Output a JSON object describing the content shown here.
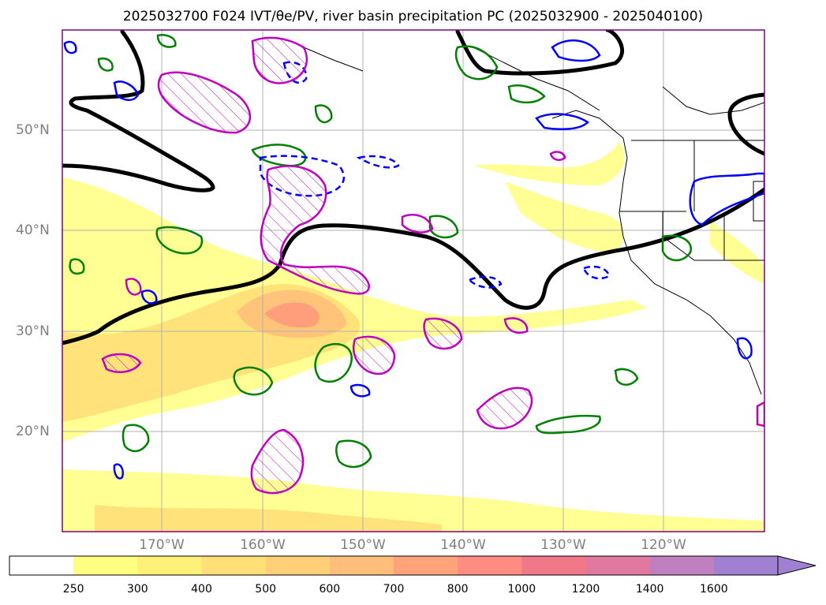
{
  "title": "2025032700 F024 IVT/θe/PV, river basin precipitation PC (2025032900 - 2025040100)",
  "map": {
    "projection": "PlateCarree",
    "lon_range": [
      -180,
      -110
    ],
    "lat_range": [
      10,
      60
    ],
    "lat_labels": [
      "50°N",
      "40°N",
      "30°N",
      "20°N"
    ],
    "lon_labels": [
      "170°W",
      "160°W",
      "150°W",
      "140°W",
      "130°W",
      "120°W"
    ],
    "gridlines": true,
    "layers": {
      "ivt_fill": "yellow-orange filled contours (IVT)",
      "theta_e": "thick black contour",
      "pv_positive": "green contours",
      "pv_negative": "blue contours (solid and dashed)",
      "pv_hatched": "magenta hatched contours"
    }
  },
  "colorbar": {
    "ticks": [
      "250",
      "300",
      "400",
      "500",
      "600",
      "700",
      "800",
      "1000",
      "1200",
      "1400",
      "1600"
    ],
    "colors": [
      "#ffffff",
      "#ffff80",
      "#fff07a",
      "#ffe078",
      "#ffd078",
      "#ffbf7a",
      "#ffa47a",
      "#ff8c80",
      "#f07888",
      "#e078a0",
      "#c080c0",
      "#a080d0"
    ],
    "extend": "max"
  }
}
